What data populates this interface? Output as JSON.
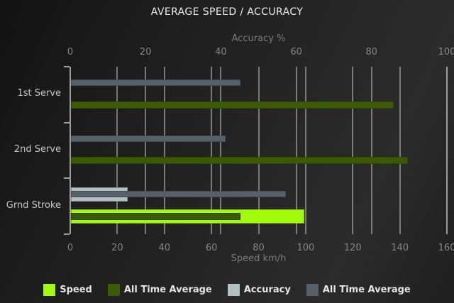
{
  "palette": {
    "background": "#1e1e1e",
    "title_color": "#ececec",
    "grid_color": "#aab1b1",
    "label_color": "#858585"
  },
  "chart_data": {
    "type": "bar",
    "orientation": "horizontal",
    "title": "AVERAGE SPEED / ACCURACY",
    "categories": [
      "1st Serve",
      "2nd Serve",
      "Grnd Stroke"
    ],
    "grid": true,
    "legend_position": "bottom",
    "axes": {
      "top": {
        "label": "Accuracy %",
        "max": 100,
        "ticks": [
          0,
          20,
          40,
          60,
          80,
          100
        ]
      },
      "bottom": {
        "label": "Speed km/h",
        "max": 160,
        "ticks": [
          0,
          20,
          40,
          60,
          80,
          100,
          120,
          140,
          160
        ]
      }
    },
    "series": [
      {
        "name": "Speed",
        "axis": "bottom",
        "color": "#a2fb0a",
        "values": [
          null,
          null,
          99
        ]
      },
      {
        "name": "All Time Average",
        "axis": "bottom",
        "color": "#3c5a06",
        "values": [
          137,
          143,
          72
        ]
      },
      {
        "name": "Accuracy",
        "axis": "top",
        "color": "#b4bfbf",
        "values": [
          null,
          null,
          15
        ]
      },
      {
        "name": "All Time Average",
        "axis": "top",
        "color": "#57616a",
        "values": [
          45,
          41,
          57
        ]
      }
    ]
  }
}
